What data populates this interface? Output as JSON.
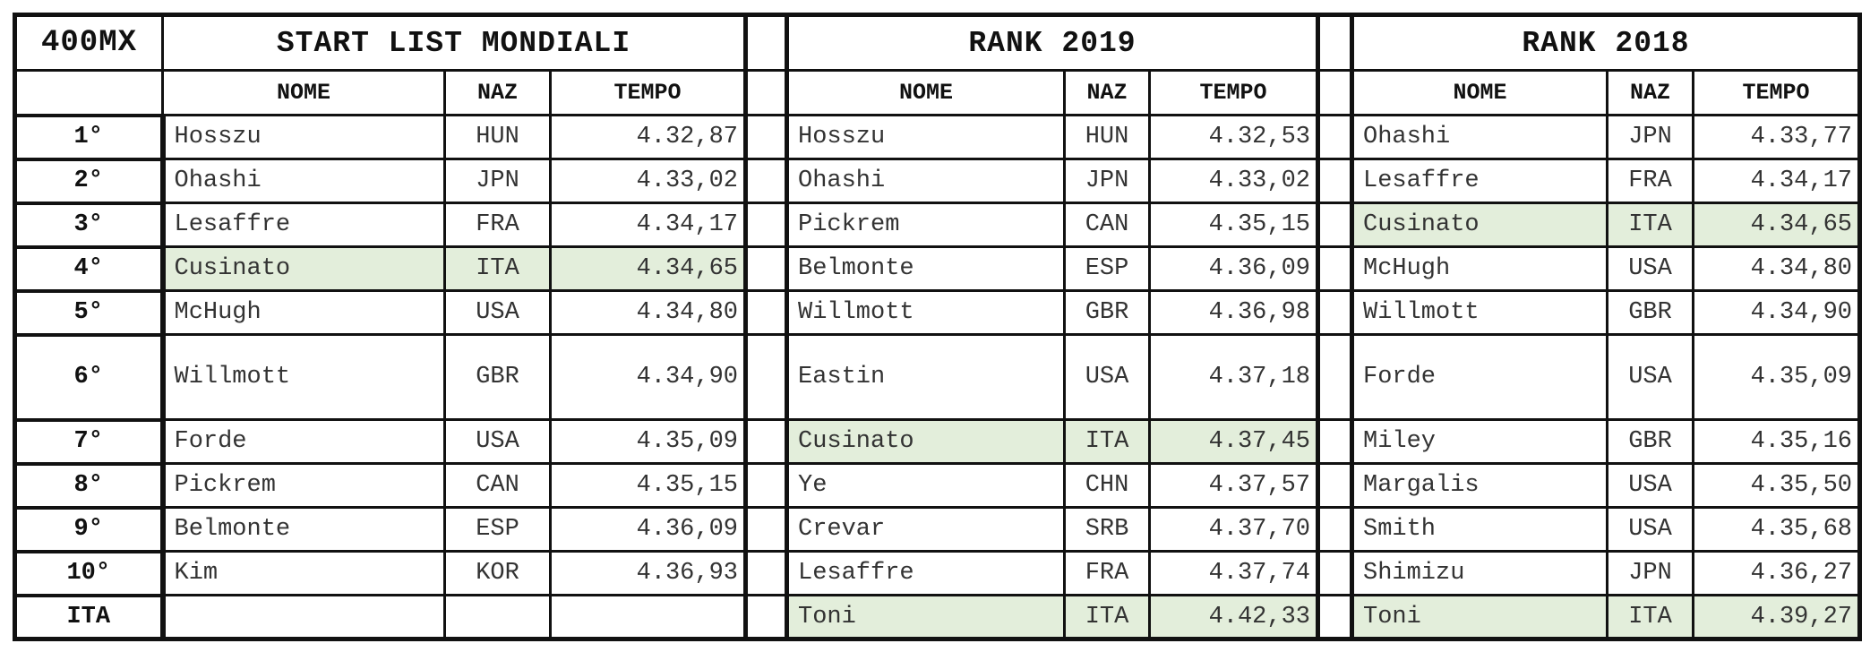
{
  "event": "400MX",
  "sections": {
    "start": "START LIST MONDIALI",
    "rank2019": "RANK 2019",
    "rank2018": "RANK 2018"
  },
  "headers": {
    "nome": "NOME",
    "naz": "NAZ",
    "tempo": "TEMPO"
  },
  "highlight_color": "#e3eedb",
  "rows": [
    {
      "rank": "1°",
      "start": {
        "nome": "Hosszu",
        "naz": "HUN",
        "tempo": "4.32,87"
      },
      "r2019": {
        "nome": "Hosszu",
        "naz": "HUN",
        "tempo": "4.32,53"
      },
      "r2018": {
        "nome": "Ohashi",
        "naz": "JPN",
        "tempo": "4.33,77"
      }
    },
    {
      "rank": "2°",
      "start": {
        "nome": "Ohashi",
        "naz": "JPN",
        "tempo": "4.33,02"
      },
      "r2019": {
        "nome": "Ohashi",
        "naz": "JPN",
        "tempo": "4.33,02"
      },
      "r2018": {
        "nome": "Lesaffre",
        "naz": "FRA",
        "tempo": "4.34,17"
      }
    },
    {
      "rank": "3°",
      "start": {
        "nome": "Lesaffre",
        "naz": "FRA",
        "tempo": "4.34,17"
      },
      "r2019": {
        "nome": "Pickrem",
        "naz": "CAN",
        "tempo": "4.35,15"
      },
      "r2018": {
        "nome": "Cusinato",
        "naz": "ITA",
        "tempo": "4.34,65"
      }
    },
    {
      "rank": "4°",
      "start": {
        "nome": "Cusinato",
        "naz": "ITA",
        "tempo": "4.34,65"
      },
      "r2019": {
        "nome": "Belmonte",
        "naz": "ESP",
        "tempo": "4.36,09"
      },
      "r2018": {
        "nome": "McHugh",
        "naz": "USA",
        "tempo": "4.34,80"
      }
    },
    {
      "rank": "5°",
      "start": {
        "nome": "McHugh",
        "naz": "USA",
        "tempo": "4.34,80"
      },
      "r2019": {
        "nome": "Willmott",
        "naz": "GBR",
        "tempo": "4.36,98"
      },
      "r2018": {
        "nome": "Willmott",
        "naz": "GBR",
        "tempo": "4.34,90"
      }
    },
    {
      "rank": "6°",
      "start": {
        "nome": "Willmott",
        "naz": "GBR",
        "tempo": "4.34,90"
      },
      "r2019": {
        "nome": "Eastin",
        "naz": "USA",
        "tempo": "4.37,18"
      },
      "r2018": {
        "nome": "Forde",
        "naz": "USA",
        "tempo": "4.35,09"
      }
    },
    {
      "rank": "7°",
      "start": {
        "nome": "Forde",
        "naz": "USA",
        "tempo": "4.35,09"
      },
      "r2019": {
        "nome": "Cusinato",
        "naz": "ITA",
        "tempo": "4.37,45"
      },
      "r2018": {
        "nome": "Miley",
        "naz": "GBR",
        "tempo": "4.35,16"
      }
    },
    {
      "rank": "8°",
      "start": {
        "nome": "Pickrem",
        "naz": "CAN",
        "tempo": "4.35,15"
      },
      "r2019": {
        "nome": "Ye",
        "naz": "CHN",
        "tempo": "4.37,57"
      },
      "r2018": {
        "nome": "Margalis",
        "naz": "USA",
        "tempo": "4.35,50"
      }
    },
    {
      "rank": "9°",
      "start": {
        "nome": "Belmonte",
        "naz": "ESP",
        "tempo": "4.36,09"
      },
      "r2019": {
        "nome": "Crevar",
        "naz": "SRB",
        "tempo": "4.37,70"
      },
      "r2018": {
        "nome": "Smith",
        "naz": "USA",
        "tempo": "4.35,68"
      }
    },
    {
      "rank": "10°",
      "start": {
        "nome": "Kim",
        "naz": "KOR",
        "tempo": "4.36,93"
      },
      "r2019": {
        "nome": "Lesaffre",
        "naz": "FRA",
        "tempo": "4.37,74"
      },
      "r2018": {
        "nome": "Shimizu",
        "naz": "JPN",
        "tempo": "4.36,27"
      }
    },
    {
      "rank": "ITA",
      "start": {
        "nome": "",
        "naz": "",
        "tempo": ""
      },
      "r2019": {
        "nome": "Toni",
        "naz": "ITA",
        "tempo": "4.42,33"
      },
      "r2018": {
        "nome": "Toni",
        "naz": "ITA",
        "tempo": "4.39,27"
      }
    }
  ]
}
